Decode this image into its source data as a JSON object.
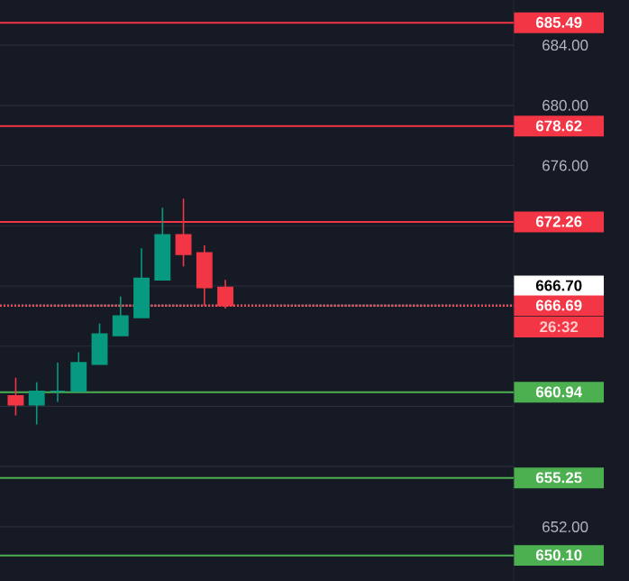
{
  "chart_data": {
    "type": "candlestick",
    "categories": [
      null,
      null,
      null,
      null,
      null,
      null,
      null,
      null,
      null,
      null,
      null,
      null,
      null,
      null,
      null,
      null,
      null,
      null,
      null,
      null,
      null,
      null,
      null,
      null
    ],
    "ohlc": [
      [
        660.7,
        661.9,
        659.4,
        660.1
      ],
      [
        660.1,
        661.6,
        658.8,
        661.0
      ],
      [
        661.0,
        662.9,
        660.3,
        661.0
      ],
      [
        661.0,
        663.6,
        661.0,
        662.9
      ],
      [
        662.8,
        665.5,
        662.8,
        664.8
      ],
      [
        664.7,
        667.3,
        664.7,
        666.0
      ],
      [
        665.9,
        670.5,
        665.9,
        668.5
      ],
      [
        668.4,
        673.2,
        668.4,
        671.4
      ],
      [
        671.4,
        673.8,
        669.3,
        670.1
      ],
      [
        670.2,
        670.7,
        666.7,
        667.9
      ],
      [
        667.9,
        668.4,
        666.5,
        666.7
      ],
      null,
      null,
      null,
      null,
      null,
      null,
      null,
      null,
      null,
      null,
      null,
      null,
      null
    ],
    "colors": [
      "#f23645",
      "#089981",
      "#089981",
      "#089981",
      "#089981",
      "#089981",
      "#089981",
      "#089981",
      "#f23645",
      "#f23645",
      "#f23645",
      null,
      null,
      null,
      null,
      null,
      null,
      null,
      null,
      null,
      null,
      null,
      null,
      null
    ],
    "ylim": [
      648.4,
      687.0
    ],
    "yticks": [
      {
        "value": 652,
        "label": "652.00"
      },
      {
        "value": 656,
        "label": null
      },
      {
        "value": 660,
        "label": null
      },
      {
        "value": 664,
        "label": null
      },
      {
        "value": 668,
        "label": null
      },
      {
        "value": 672,
        "label": null
      },
      {
        "value": 676,
        "label": "676.00"
      },
      {
        "value": 680,
        "label": "680.00"
      },
      {
        "value": 684,
        "label": "684.00"
      }
    ],
    "grid": "y",
    "ref_lines": [
      {
        "axis": "y",
        "value": 685.49,
        "label": "685.49",
        "color": "#f23645"
      },
      {
        "axis": "y",
        "value": 678.62,
        "label": "678.62",
        "color": "#f23645"
      },
      {
        "axis": "y",
        "value": 672.26,
        "label": "672.26",
        "color": "#f23645"
      },
      {
        "axis": "y",
        "value": 666.7,
        "label": "666.70",
        "color": "#ffffff",
        "line_style": "dotted"
      },
      {
        "axis": "y",
        "value": 666.69,
        "label": "666.69",
        "color": "#f23645",
        "line_style": "dotted"
      },
      {
        "axis": "y",
        "value": 660.94,
        "label": "660.94",
        "color": "#4caf50"
      },
      {
        "axis": "y",
        "value": 655.25,
        "label": "655.25",
        "color": "#4caf50"
      },
      {
        "axis": "y",
        "value": 650.1,
        "label": "650.10",
        "color": "#4caf50"
      }
    ],
    "annotations": [
      "26:32"
    ]
  }
}
